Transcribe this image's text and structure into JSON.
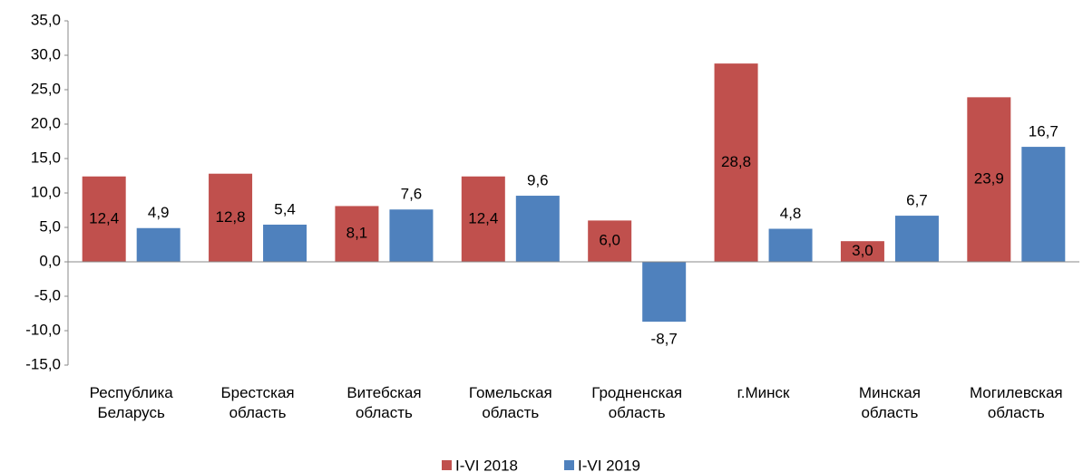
{
  "chart_data": {
    "type": "bar",
    "categories": [
      "Республика\nБеларусь",
      "Брестская\nобласть",
      "Витебская\nобласть",
      "Гомельская\nобласть",
      "Гродненская\nобласть",
      "г.Минск",
      "Минская\nобласть",
      "Могилевская\nобласть"
    ],
    "series": [
      {
        "name": "I-VI 2018",
        "color": "#c0504d",
        "values": [
          12.4,
          12.8,
          8.1,
          12.4,
          6.0,
          28.8,
          3.0,
          23.9
        ],
        "value_labels": [
          "12,4",
          "12,8",
          "8,1",
          "12,4",
          "6,0",
          "28,8",
          "3,0",
          "23,9"
        ]
      },
      {
        "name": "I-VI 2019",
        "color": "#4f81bd",
        "values": [
          4.9,
          5.4,
          7.6,
          9.6,
          -8.7,
          4.8,
          6.7,
          16.7
        ],
        "value_labels": [
          "4,9",
          "5,4",
          "7,6",
          "9,6",
          "-8,7",
          "4,8",
          "6,7",
          "16,7"
        ]
      }
    ],
    "ylim": [
      -15,
      35
    ],
    "yticks": [
      {
        "value": -15,
        "label": "-15,0"
      },
      {
        "value": -10,
        "label": "-10,0"
      },
      {
        "value": -5,
        "label": "-5,0"
      },
      {
        "value": 0,
        "label": "0,0"
      },
      {
        "value": 5,
        "label": "5,0"
      },
      {
        "value": 10,
        "label": "10,0"
      },
      {
        "value": 15,
        "label": "15,0"
      },
      {
        "value": 20,
        "label": "20,0"
      },
      {
        "value": 25,
        "label": "25,0"
      },
      {
        "value": 30,
        "label": "30,0"
      },
      {
        "value": 35,
        "label": "35,0"
      }
    ],
    "legend": "bottom"
  }
}
